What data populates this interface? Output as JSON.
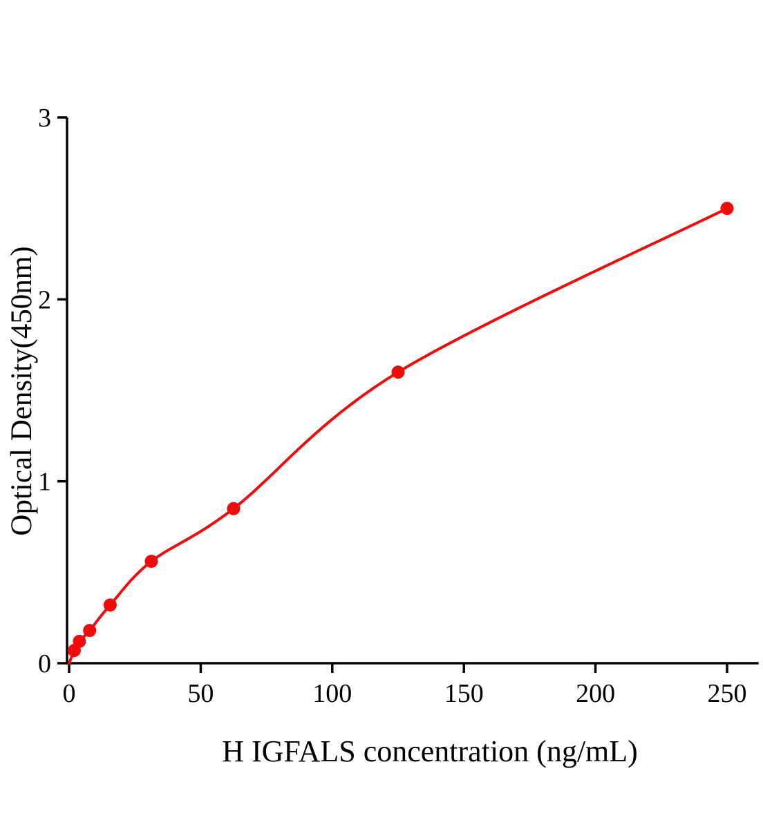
{
  "chart_data": {
    "type": "scatter",
    "title": "",
    "xlabel": "H IGFALS concentration (ng/mL)",
    "ylabel": "Optical Density(450nm)",
    "x": [
      1.95,
      3.9,
      7.8,
      15.6,
      31.25,
      62.5,
      125,
      250
    ],
    "y": [
      0.07,
      0.12,
      0.18,
      0.32,
      0.56,
      0.85,
      1.6,
      2.5
    ],
    "x_ticks": [
      0,
      50,
      100,
      150,
      200,
      250
    ],
    "y_ticks": [
      0,
      1,
      2,
      3
    ],
    "xlim": [
      0,
      262
    ],
    "ylim": [
      0,
      3
    ],
    "grid": false,
    "legend": null,
    "curve": "smooth fitted curve through points, starting at origin",
    "marker_color": "#f10c0c",
    "line_color": "#f10c0c",
    "axis_color": "#000000",
    "background": "#ffffff"
  }
}
